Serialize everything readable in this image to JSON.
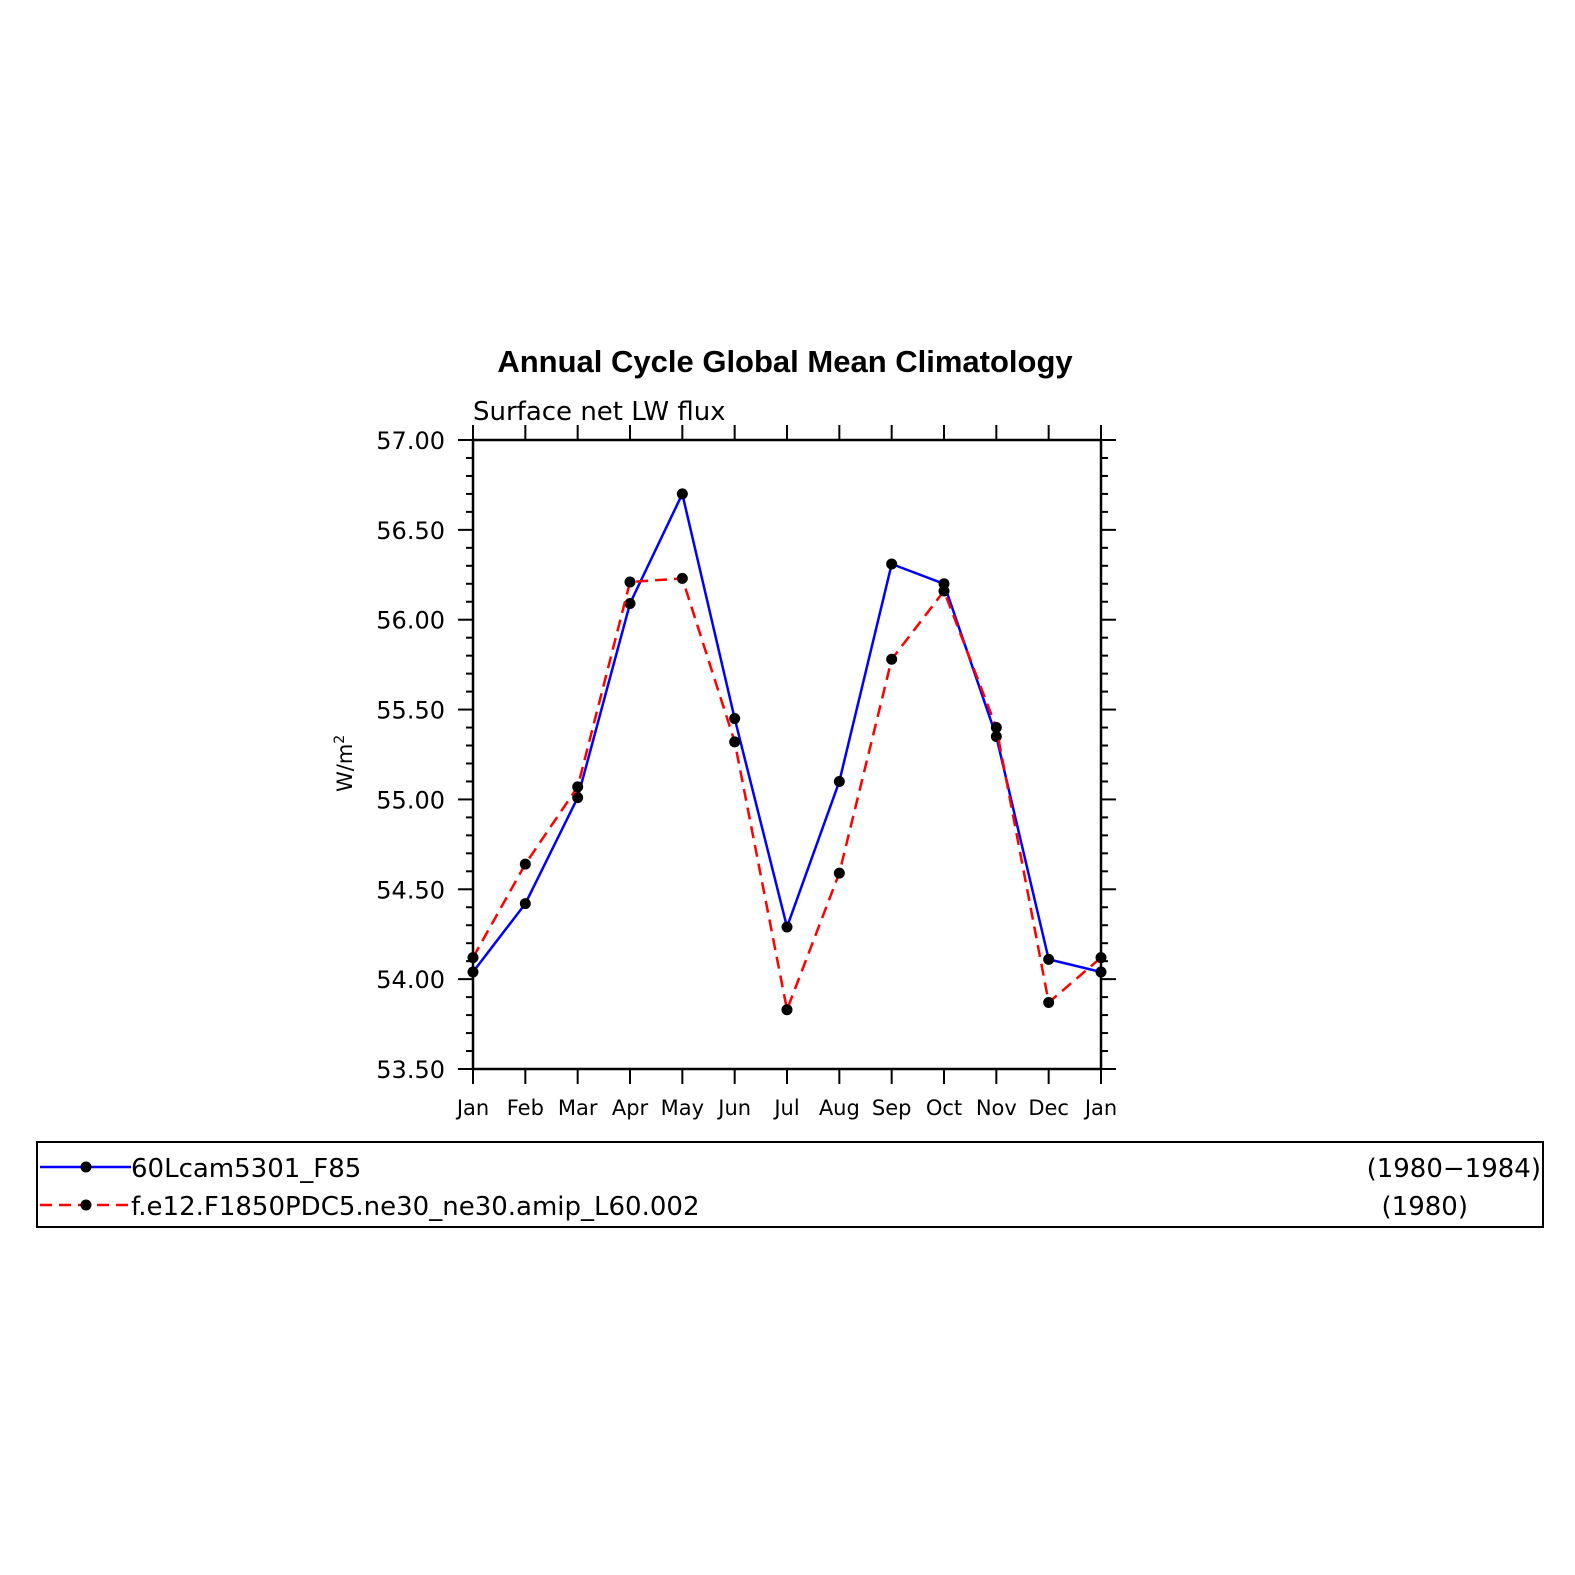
{
  "chart_data": {
    "type": "line",
    "title": "Annual Cycle Global Mean Climatology",
    "subtitle": "Surface net LW flux",
    "xlabel": "",
    "ylabel": "W/m",
    "ylabel_superscript": "2",
    "categories": [
      "Jan",
      "Feb",
      "Mar",
      "Apr",
      "May",
      "Jun",
      "Jul",
      "Aug",
      "Sep",
      "Oct",
      "Nov",
      "Dec",
      "Jan"
    ],
    "ylim": [
      53.5,
      57.0
    ],
    "yticks": [
      "53.50",
      "54.00",
      "54.50",
      "55.00",
      "55.50",
      "56.00",
      "56.50",
      "57.00"
    ],
    "grid": false,
    "legend_placement": "bottom",
    "series": [
      {
        "name": "60Lcam5301_F85",
        "period": "(1980−1984)",
        "color": "#0000ff",
        "style": "solid",
        "marker": "dot",
        "values": [
          54.04,
          54.42,
          55.01,
          56.09,
          56.7,
          55.45,
          54.29,
          55.1,
          56.31,
          56.2,
          55.35,
          54.11,
          54.04
        ]
      },
      {
        "name": "f.e12.F1850PDC5.ne30_ne30.amip_L60.002",
        "period": "(1980)",
        "color": "#ff0000",
        "style": "dashed",
        "marker": "dot",
        "values": [
          54.12,
          54.64,
          55.07,
          56.21,
          56.23,
          55.32,
          53.83,
          54.59,
          55.78,
          56.16,
          55.4,
          53.87,
          54.12
        ]
      }
    ]
  }
}
